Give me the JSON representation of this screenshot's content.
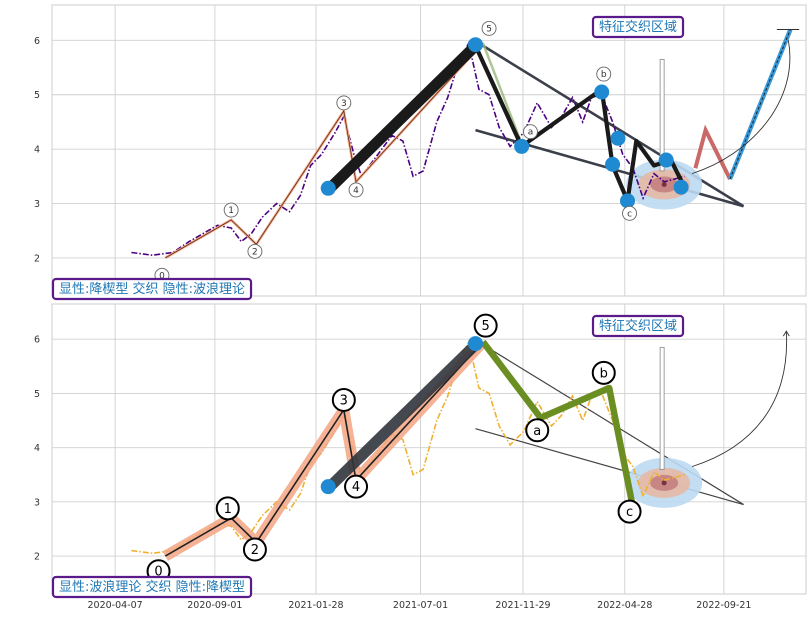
{
  "chart_data": [
    {
      "type": "line",
      "panel": "top",
      "ylim": [
        1.3,
        6.65
      ],
      "yticks": [
        2,
        3,
        4,
        5,
        6
      ],
      "grid": true,
      "series": [
        {
          "style": "dash-dot",
          "color": "#4b0082",
          "x": [
            "2020-05-01",
            "2020-06-01",
            "2020-07-01",
            "2020-07-25",
            "2020-08-15",
            "2020-09-05",
            "2020-09-25",
            "2020-10-10",
            "2020-10-25",
            "2020-11-10",
            "2020-12-01",
            "2020-12-20",
            "2021-01-05",
            "2021-01-20",
            "2021-02-05",
            "2021-02-25",
            "2021-03-10",
            "2021-03-25",
            "2021-04-05",
            "2021-04-20",
            "2021-05-05",
            "2021-05-20",
            "2021-06-05",
            "2021-06-20",
            "2021-07-05",
            "2021-07-25",
            "2021-08-10",
            "2021-08-25",
            "2021-09-10",
            "2021-09-25",
            "2021-10-10",
            "2021-10-25",
            "2021-11-10",
            "2021-11-30",
            "2021-12-20",
            "2022-01-10",
            "2022-01-25",
            "2022-02-10",
            "2022-02-25",
            "2022-03-10",
            "2022-03-25",
            "2022-04-10",
            "2022-04-25",
            "2022-05-10",
            "2022-05-25",
            "2022-06-10",
            "2022-06-25",
            "2022-07-10",
            "2022-07-25"
          ],
          "y": [
            2.1,
            2.05,
            2.1,
            2.3,
            2.45,
            2.6,
            2.55,
            2.3,
            2.45,
            2.75,
            3.0,
            2.85,
            3.15,
            3.7,
            3.9,
            4.3,
            4.6,
            3.9,
            3.5,
            3.75,
            4.0,
            4.25,
            4.15,
            3.5,
            3.6,
            4.5,
            4.95,
            5.55,
            5.95,
            5.1,
            5.0,
            4.4,
            4.05,
            4.3,
            4.85,
            4.4,
            4.6,
            4.95,
            4.5,
            4.95,
            5.0,
            4.5,
            3.9,
            3.65,
            3.1,
            3.55,
            3.4,
            3.45,
            3.5
          ]
        },
        {
          "style": "solid",
          "color": "#f4a582",
          "name": "",
          "x": [
            "2020-06-20",
            "2020-09-25",
            "2020-11-01",
            "2021-03-10",
            "2021-03-28",
            "2021-10-01"
          ],
          "y": [
            2.0,
            2.7,
            2.25,
            4.7,
            3.4,
            5.95
          ]
        },
        {
          "style": "thick",
          "color": "#1a1a1a",
          "x": [
            "2021-02-15",
            "2021-09-20"
          ],
          "y": [
            3.25,
            5.9
          ]
        },
        {
          "style": "thick",
          "color": "#1a1a1a",
          "x": [
            "2021-09-20",
            "2021-11-27",
            "2022-03-25",
            "2022-04-10",
            "2022-05-02",
            "2022-05-15",
            "2022-06-10",
            "2022-07-05",
            "2022-07-25"
          ],
          "y": [
            5.9,
            4.05,
            5.1,
            3.7,
            3.05,
            4.15,
            3.7,
            3.8,
            3.3
          ]
        }
      ],
      "annotations": {
        "badge_left": "显性:降楔型 交织 隐性:波浪理论",
        "badge_right": "特征交织区域",
        "wave_labels": [
          "0",
          "1",
          "2",
          "3",
          "4",
          "5",
          "a",
          "b",
          "c"
        ]
      }
    },
    {
      "type": "line",
      "panel": "bottom",
      "ylim": [
        1.3,
        6.65
      ],
      "yticks": [
        2,
        3,
        4,
        5,
        6
      ],
      "xticks": [
        "2020-04-07",
        "2020-09-01",
        "2021-01-28",
        "2021-07-01",
        "2021-11-29",
        "2022-04-28",
        "2022-09-21"
      ],
      "grid": true,
      "series": [
        {
          "style": "dash-dot",
          "color": "#f0b030",
          "x": [
            "2020-05-01",
            "2020-06-01",
            "2020-07-01",
            "2020-07-25",
            "2020-08-15",
            "2020-09-05",
            "2020-09-25",
            "2020-10-10",
            "2020-10-25",
            "2020-11-10",
            "2020-12-01",
            "2020-12-20",
            "2021-01-05",
            "2021-01-20",
            "2021-02-05",
            "2021-02-25",
            "2021-03-10",
            "2021-03-25",
            "2021-04-05",
            "2021-04-20",
            "2021-05-05",
            "2021-05-20",
            "2021-06-05",
            "2021-06-20",
            "2021-07-05",
            "2021-07-25",
            "2021-08-10",
            "2021-08-25",
            "2021-09-10",
            "2021-09-25",
            "2021-10-10",
            "2021-10-25",
            "2021-11-10",
            "2021-11-30",
            "2021-12-20",
            "2022-01-10",
            "2022-01-25",
            "2022-02-10",
            "2022-02-25",
            "2022-03-10",
            "2022-03-25",
            "2022-04-10",
            "2022-04-25",
            "2022-05-10",
            "2022-05-25",
            "2022-06-10",
            "2022-06-25",
            "2022-07-10",
            "2022-07-25"
          ],
          "y": [
            2.1,
            2.05,
            2.1,
            2.3,
            2.45,
            2.6,
            2.55,
            2.3,
            2.45,
            2.75,
            3.0,
            2.85,
            3.15,
            3.7,
            3.9,
            4.3,
            4.6,
            3.9,
            3.5,
            3.75,
            4.0,
            4.25,
            4.15,
            3.5,
            3.6,
            4.5,
            4.95,
            5.55,
            5.95,
            5.1,
            5.0,
            4.4,
            4.05,
            4.3,
            4.85,
            4.4,
            4.6,
            4.95,
            4.5,
            4.95,
            5.0,
            4.5,
            3.9,
            3.65,
            3.1,
            3.55,
            3.4,
            3.45,
            3.5
          ]
        },
        {
          "style": "thick",
          "color": "#f4a582",
          "x": [
            "2020-06-20",
            "2020-09-25",
            "2020-11-01",
            "2021-03-10",
            "2021-03-28",
            "2021-10-01"
          ],
          "y": [
            2.0,
            2.7,
            2.25,
            4.7,
            3.4,
            5.95
          ]
        },
        {
          "style": "thick",
          "color": "#6b8e23",
          "x": [
            "2021-10-01",
            "2021-12-25",
            "2022-04-05",
            "2022-05-10"
          ],
          "y": [
            5.95,
            4.55,
            5.1,
            2.9
          ]
        },
        {
          "style": "thick",
          "color": "#1a1a1a",
          "x": [
            "2021-02-15",
            "2021-09-20"
          ],
          "y": [
            3.25,
            5.9
          ]
        }
      ],
      "annotations": {
        "badge_left": "显性:波浪理论 交织 隐性:降楔型",
        "badge_right": "特征交织区域",
        "wave_labels": [
          "0",
          "1",
          "2",
          "3",
          "4",
          "5",
          "a",
          "b",
          "c"
        ]
      }
    }
  ]
}
